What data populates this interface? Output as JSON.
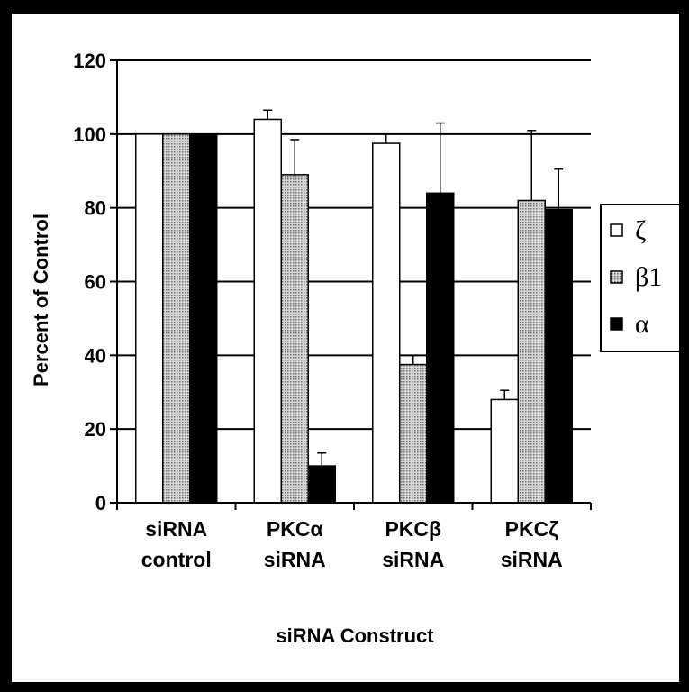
{
  "chart_data": {
    "type": "bar",
    "ylabel": "Percent of Control",
    "xlabel": "siRNA Construct",
    "ylim": [
      0,
      120
    ],
    "yticks": [
      0,
      20,
      40,
      60,
      80,
      100,
      120
    ],
    "grid": true,
    "legend_position": "right",
    "categories": [
      [
        "siRNA",
        "control"
      ],
      [
        "PKCα",
        "siRNA"
      ],
      [
        "PKCβ",
        "siRNA"
      ],
      [
        "PKCζ",
        "siRNA"
      ]
    ],
    "series": [
      {
        "name": "ζ",
        "fill": "#ffffff",
        "values": [
          100,
          104,
          97.5,
          28
        ],
        "errors": [
          null,
          2.5,
          2.5,
          2.5
        ]
      },
      {
        "name": "β1",
        "fill": "#b8b8b8",
        "values": [
          100,
          89,
          37.5,
          82
        ],
        "errors": [
          null,
          9.5,
          2.5,
          19
        ]
      },
      {
        "name": "α",
        "fill": "#000000",
        "values": [
          100,
          10,
          84,
          79.5
        ],
        "errors": [
          null,
          3.5,
          19,
          11
        ]
      }
    ]
  }
}
